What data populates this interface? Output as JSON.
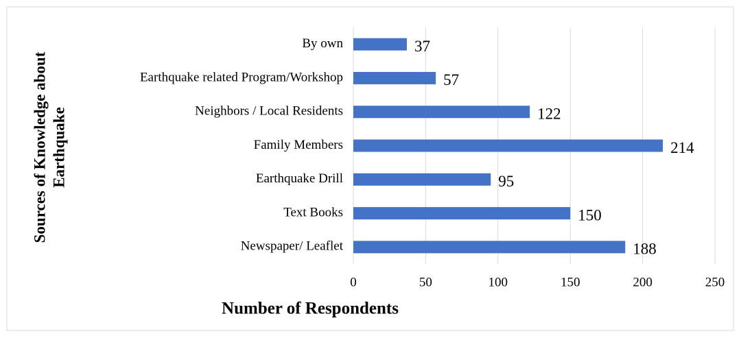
{
  "chart_data": {
    "type": "bar",
    "orientation": "horizontal",
    "categories": [
      "By own",
      "Earthquake related Program/Workshop",
      "Neighbors / Local Residents",
      "Family Members",
      "Earthquake Drill",
      "Text Books",
      "Newspaper/ Leaflet"
    ],
    "values": [
      37,
      57,
      122,
      214,
      95,
      150,
      188
    ],
    "color": "#4472c4",
    "xlim": [
      0,
      250
    ],
    "xticks": [
      0,
      50,
      100,
      150,
      200,
      250
    ],
    "grid": true,
    "xlabel": "Number of Respondents",
    "ylabel": [
      "Sources of Knowledge about",
      "Earthquake"
    ]
  }
}
